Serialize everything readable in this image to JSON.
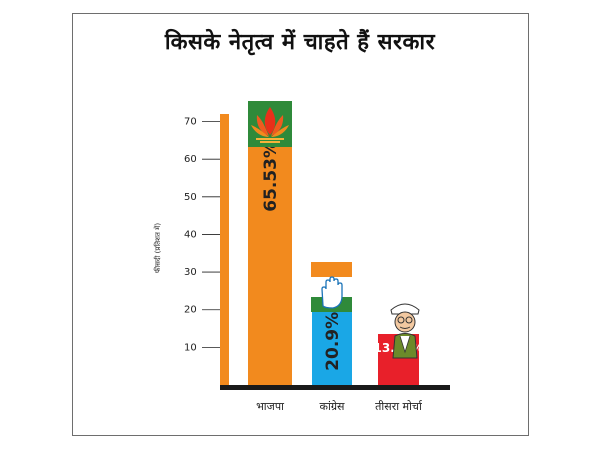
{
  "chart_data": {
    "type": "bar",
    "title": "किसके नेतृत्व में चाहते हैं सरकार",
    "ylabel": "फीसदी (प्रतिशत में)",
    "xlabel": "",
    "yticks": [
      10,
      20,
      30,
      40,
      50,
      60,
      70
    ],
    "ylim": [
      0,
      72
    ],
    "categories": [
      "भाजपा",
      "कांग्रेस",
      "तीसरा मोर्चा"
    ],
    "values": [
      65.53,
      20.9,
      13.55
    ],
    "value_labels": [
      "65.53%",
      "20.9%",
      "13.55%"
    ],
    "colors": [
      "#f28a1e",
      "#1aa7e6",
      "#e8202a"
    ],
    "icons": [
      "lotus-icon",
      "hand-icon",
      "cartoon-man-icon"
    ],
    "grid": false
  }
}
